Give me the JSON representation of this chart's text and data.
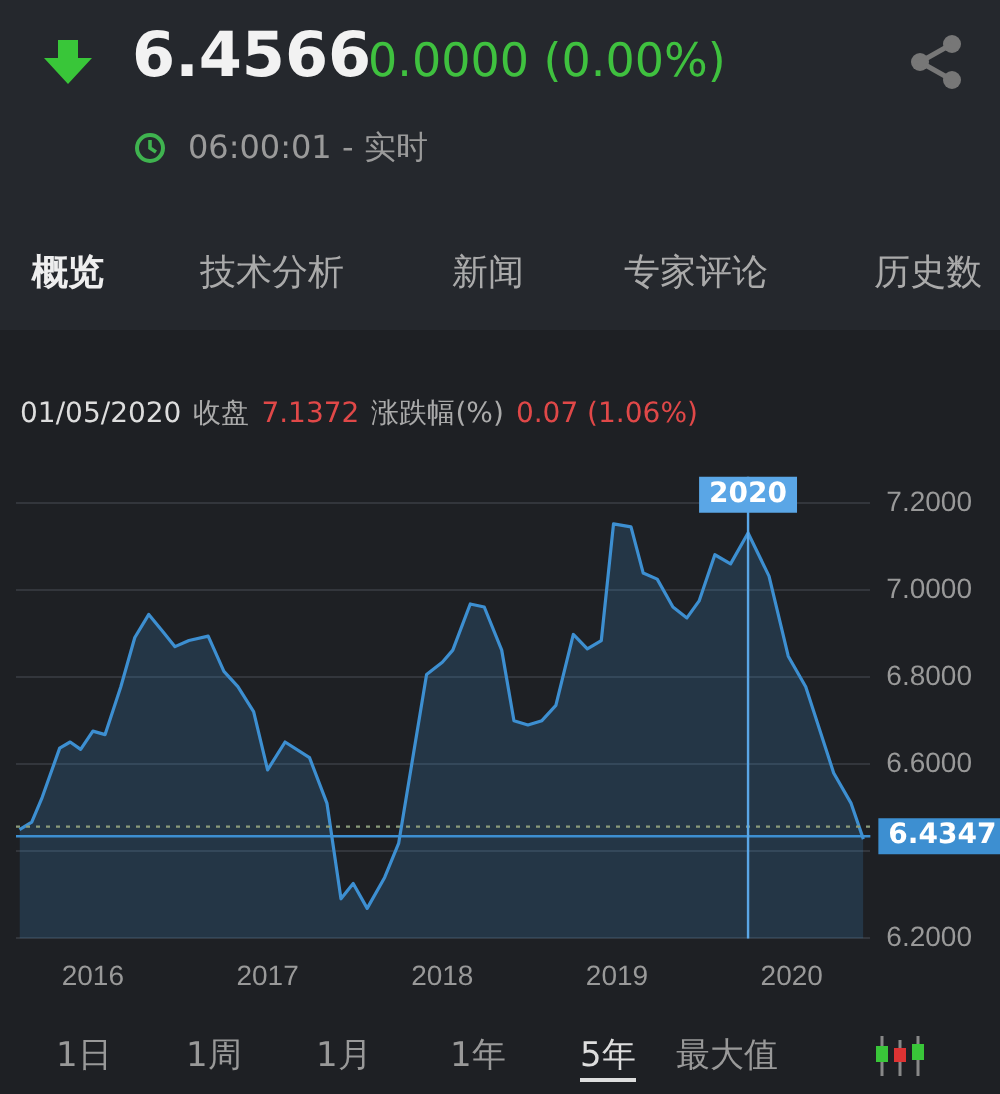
{
  "chart_data": {
    "type": "area",
    "title": "6.4566",
    "subtitle": "0.0000 (0.00%)",
    "annotations": [
      "06:00:01 - 实时",
      "概览",
      "技术分析",
      "新闻",
      "专家评论",
      "历史数",
      "01/05/2020",
      "收盘",
      "7.1372",
      "涨跌幅(%)",
      "0.07 (1.06%)",
      "1日",
      "1周",
      "1月",
      "1年",
      "5年",
      "最大值"
    ],
    "x": [
      2015.58,
      2015.65,
      2015.71,
      2015.81,
      2015.87,
      2015.93,
      2016.0,
      2016.07,
      2016.16,
      2016.24,
      2016.32,
      2016.4,
      2016.47,
      2016.55,
      2016.66,
      2016.75,
      2016.83,
      2016.92,
      2017.0,
      2017.1,
      2017.24,
      2017.34,
      2017.42,
      2017.49,
      2017.57,
      2017.67,
      2017.75,
      2017.91,
      2018.0,
      2018.06,
      2018.16,
      2018.24,
      2018.34,
      2018.41,
      2018.49,
      2018.57,
      2018.65,
      2018.75,
      2018.83,
      2018.91,
      2018.98,
      2019.08,
      2019.15,
      2019.23,
      2019.32,
      2019.4,
      2019.47,
      2019.56,
      2019.65,
      2019.75,
      2019.87,
      2019.98,
      2020.08,
      2020.24,
      2020.34,
      2020.41
    ],
    "series": [
      {
        "color": "#3d8fd1",
        "values": [
          6.45,
          6.467,
          6.524,
          6.637,
          6.651,
          6.634,
          6.676,
          6.668,
          6.778,
          6.891,
          6.944,
          6.905,
          6.87,
          6.884,
          6.894,
          6.813,
          6.778,
          6.721,
          6.587,
          6.651,
          6.615,
          6.51,
          6.291,
          6.326,
          6.269,
          6.34,
          6.418,
          6.806,
          6.834,
          6.862,
          6.968,
          6.961,
          6.862,
          6.7,
          6.69,
          6.7,
          6.735,
          6.898,
          6.865,
          6.884,
          7.152,
          7.145,
          7.039,
          7.025,
          6.961,
          6.936,
          6.975,
          7.081,
          7.06,
          7.131,
          7.032,
          6.848,
          6.778,
          6.58,
          6.51,
          6.428
        ]
      }
    ],
    "xlim": [
      2015.56,
      2020.45
    ],
    "xticks": [
      2016,
      2017,
      2018,
      2019,
      2020
    ],
    "ylim": [
      6.2,
      7.26
    ],
    "yticks": [
      {
        "value": 6.2,
        "label": "6.2000"
      },
      {
        "value": 6.4,
        "label": null
      },
      {
        "value": 6.6,
        "label": "6.6000"
      },
      {
        "value": 6.8,
        "label": "6.8000"
      },
      {
        "value": 7.0,
        "label": "7.0000"
      },
      {
        "value": 7.2,
        "label": "7.2000"
      }
    ],
    "ref_lines": [
      {
        "axis": "y",
        "value": 6.4347,
        "label": "6.4347",
        "color": "#3d8fd1"
      },
      {
        "axis": "y",
        "value": 6.4566,
        "color": "#8a9a7a",
        "line_style": "dotted"
      },
      {
        "axis": "x",
        "value": 2019.75,
        "label": "2020",
        "color": "#5aa6e6"
      }
    ],
    "grid": "y",
    "legend": false,
    "marker": "none",
    "line_style": "solid"
  }
}
